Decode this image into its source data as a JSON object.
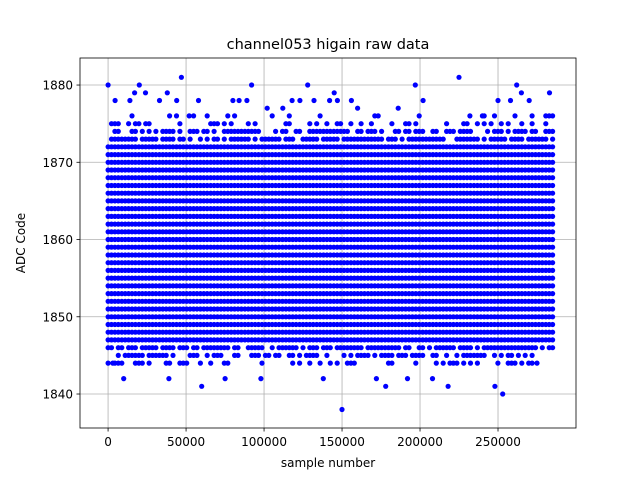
{
  "chart_data": {
    "type": "scatter",
    "title": "channel053 higain raw data",
    "xlabel": "sample number",
    "ylabel": "ADC Code",
    "xlim": [
      -18000,
      300000
    ],
    "ylim": [
      1835.6,
      1883.5
    ],
    "x_ticks": [
      0,
      50000,
      100000,
      150000,
      200000,
      250000
    ],
    "y_ticks": [
      1840,
      1850,
      1860,
      1870,
      1880
    ],
    "grid": true,
    "marker_color": "#0000ff",
    "series": [
      {
        "x_range": [
          0,
          285000
        ],
        "dense_band": [
          1844,
          1876
        ],
        "outliers": [
          [
            0,
            1880
          ],
          [
            3000,
            1844
          ],
          [
            4500,
            1878
          ],
          [
            10000,
            1842
          ],
          [
            14000,
            1878
          ],
          [
            17000,
            1879
          ],
          [
            20000,
            1880
          ],
          [
            24000,
            1879
          ],
          [
            33000,
            1878
          ],
          [
            38000,
            1879
          ],
          [
            39000,
            1842
          ],
          [
            44000,
            1878
          ],
          [
            47000,
            1881
          ],
          [
            52000,
            1876
          ],
          [
            58000,
            1878
          ],
          [
            60000,
            1841
          ],
          [
            75000,
            1842
          ],
          [
            80000,
            1878
          ],
          [
            84000,
            1878
          ],
          [
            89000,
            1878
          ],
          [
            92000,
            1880
          ],
          [
            98000,
            1842
          ],
          [
            102000,
            1877
          ],
          [
            112000,
            1877
          ],
          [
            118000,
            1878
          ],
          [
            123000,
            1878
          ],
          [
            128000,
            1880
          ],
          [
            132000,
            1878
          ],
          [
            138000,
            1842
          ],
          [
            142000,
            1878
          ],
          [
            145000,
            1879
          ],
          [
            147000,
            1878
          ],
          [
            150000,
            1838
          ],
          [
            156000,
            1878
          ],
          [
            160000,
            1877
          ],
          [
            172000,
            1842
          ],
          [
            178000,
            1841
          ],
          [
            186000,
            1877
          ],
          [
            192000,
            1842
          ],
          [
            197000,
            1880
          ],
          [
            202000,
            1878
          ],
          [
            208000,
            1842
          ],
          [
            218000,
            1841
          ],
          [
            225000,
            1881
          ],
          [
            232000,
            1876
          ],
          [
            240000,
            1876
          ],
          [
            248000,
            1841
          ],
          [
            250000,
            1878
          ],
          [
            253000,
            1840
          ],
          [
            258000,
            1878
          ],
          [
            262000,
            1880
          ],
          [
            265000,
            1879
          ],
          [
            270000,
            1878
          ],
          [
            275000,
            1844
          ],
          [
            283000,
            1879
          ]
        ]
      }
    ]
  }
}
